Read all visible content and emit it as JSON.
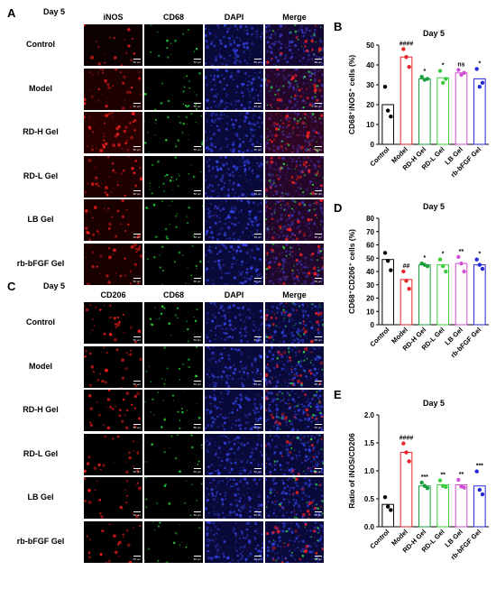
{
  "panels": {
    "A": {
      "letter": "A",
      "day_label": "Day 5",
      "columns": [
        "iNOS",
        "CD68",
        "DAPI",
        "Merge"
      ],
      "rows": [
        "Control",
        "Model",
        "RD-H Gel",
        "RD-L Gel",
        "LB Gel",
        "rb-bFGF Gel"
      ],
      "scalebar_label": "50 μm"
    },
    "C": {
      "letter": "C",
      "day_label": "Day 5",
      "columns": [
        "CD206",
        "CD68",
        "DAPI",
        "Merge"
      ],
      "rows": [
        "Control",
        "Model",
        "RD-H Gel",
        "RD-L Gel",
        "LB Gel",
        "rb-bFGF Gel"
      ],
      "scalebar_label": "50 μm"
    }
  },
  "chart_data": [
    {
      "letter": "B",
      "type": "bar",
      "title": "Day 5",
      "ylabel_html": "CD68⁺iNOS⁺ cells (%)",
      "ylim": [
        0,
        50
      ],
      "yticks": [
        0,
        10,
        20,
        30,
        40,
        50
      ],
      "categories": [
        "Control",
        "Model",
        "RD-H Gel",
        "RD-L Gel",
        "LB Gel",
        "rb-bFGF Gel"
      ],
      "values": [
        20,
        44,
        33,
        33.5,
        36,
        33
      ],
      "points": [
        [
          29,
          17,
          14
        ],
        [
          48,
          44,
          39
        ],
        [
          34,
          32.5,
          33
        ],
        [
          37,
          31,
          33
        ],
        [
          37.5,
          35,
          36
        ],
        [
          38,
          29,
          31
        ]
      ],
      "significance": [
        "",
        "####",
        "*",
        "*",
        "ns",
        "*"
      ],
      "colors": [
        "#000000",
        "#e8232a",
        "#1a9e3f",
        "#3ccb3c",
        "#d24fd2",
        "#2329d6"
      ]
    },
    {
      "letter": "D",
      "type": "bar",
      "title": "Day 5",
      "ylabel_html": "CD68⁺CD206⁺ cells (%)",
      "ylim": [
        0,
        80
      ],
      "yticks": [
        0,
        10,
        20,
        30,
        40,
        50,
        60,
        70,
        80
      ],
      "categories": [
        "Control",
        "Model",
        "RD-H Gel",
        "RD-L Gel",
        "LB Gel",
        "rb-bFGF Gel"
      ],
      "values": [
        49,
        34,
        45,
        45,
        46,
        45
      ],
      "points": [
        [
          54,
          48,
          41
        ],
        [
          40,
          33,
          27
        ],
        [
          46,
          45,
          44
        ],
        [
          49,
          44,
          40
        ],
        [
          51,
          46,
          40
        ],
        [
          49,
          45,
          42
        ]
      ],
      "significance": [
        "",
        "##",
        "*",
        "*",
        "**",
        "*"
      ],
      "colors": [
        "#000000",
        "#e8232a",
        "#1a9e3f",
        "#3ccb3c",
        "#d24fd2",
        "#2329d6"
      ]
    },
    {
      "letter": "E",
      "type": "bar",
      "title": "Day 5",
      "ylabel_html": "Ratio of iNOS/CD206",
      "ylim": [
        0,
        2.0
      ],
      "yticks": [
        0.0,
        0.5,
        1.0,
        1.5,
        2.0
      ],
      "ytick_labels": [
        "0.0",
        "0.5",
        "1.0",
        "1.5",
        "2.0"
      ],
      "categories": [
        "Control",
        "Model",
        "RD-H Gel",
        "RD-L Gel",
        "LB Gel",
        "rb-bFGF Gel"
      ],
      "values": [
        0.4,
        1.33,
        0.73,
        0.75,
        0.75,
        0.73
      ],
      "points": [
        [
          0.53,
          0.36,
          0.3
        ],
        [
          1.49,
          1.33,
          1.17
        ],
        [
          0.79,
          0.73,
          0.69
        ],
        [
          0.83,
          0.73,
          0.71
        ],
        [
          0.84,
          0.72,
          0.7
        ],
        [
          0.99,
          0.66,
          0.58
        ]
      ],
      "significance": [
        "",
        "####",
        "***",
        "**",
        "**",
        "***"
      ],
      "colors": [
        "#000000",
        "#e8232a",
        "#1a9e3f",
        "#3ccb3c",
        "#d24fd2",
        "#2329d6"
      ]
    }
  ]
}
